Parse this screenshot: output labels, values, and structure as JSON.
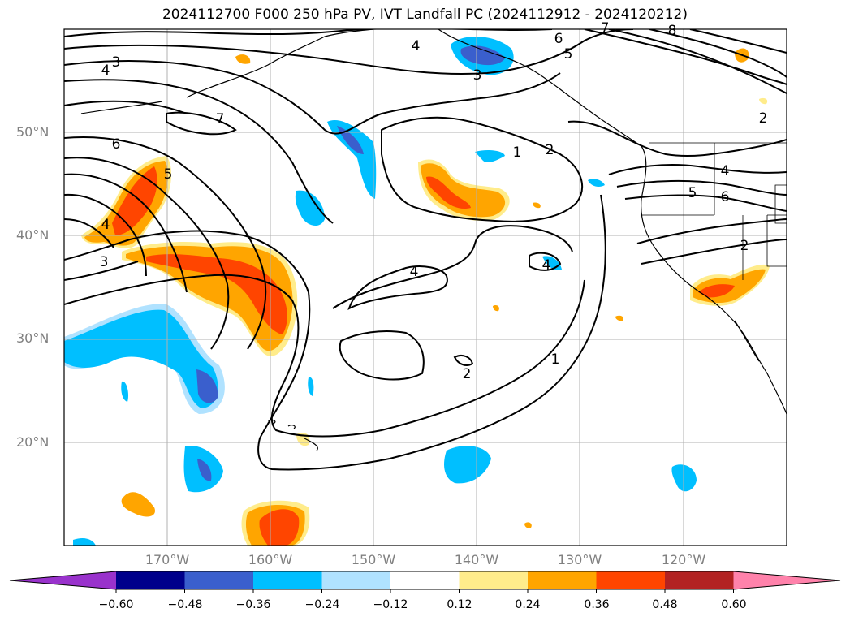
{
  "title": "2024112700 F000 250 hPa PV, IVT Landfall PC (2024112912 - 2024120212)",
  "map": {
    "lon_range": [
      -180,
      -110
    ],
    "lat_range": [
      10,
      60
    ],
    "lat_labels": [
      "50°N",
      "40°N",
      "30°N",
      "20°N"
    ],
    "lon_labels": [
      "170°W",
      "160°W",
      "150°W",
      "140°W",
      "130°W",
      "120°W"
    ],
    "contour_labels": [
      "3",
      "4",
      "6",
      "5",
      "4",
      "3",
      "7",
      "4",
      "3",
      "5",
      "6",
      "7",
      "8",
      "1",
      "2",
      "4",
      "4",
      "2",
      "1",
      "5",
      "6",
      "4",
      "2",
      "2"
    ],
    "contour_color": "#000000",
    "coastline_color": "#000000",
    "grid_color": "#b0b0b0"
  },
  "colorbar": {
    "levels": [
      "−0.60",
      "−0.48",
      "−0.36",
      "−0.24",
      "−0.12",
      "0.12",
      "0.24",
      "0.36",
      "0.48",
      "0.60"
    ],
    "colors": [
      "#9932cc",
      "#00008b",
      "#3a5fcd",
      "#00bfff",
      "#b0e2ff",
      "#ffffff",
      "#ffec8b",
      "#ffa500",
      "#ff4500",
      "#b22222",
      "#ff82ab"
    ],
    "extend": "both"
  }
}
